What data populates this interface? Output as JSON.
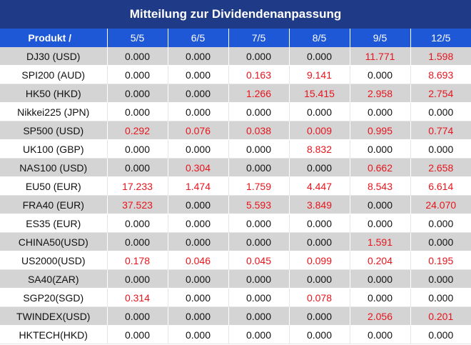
{
  "title": "Mitteilung zur Dividendenanpassung",
  "header": {
    "product_label": "Produkt /",
    "dates": [
      "5/5",
      "6/5",
      "7/5",
      "8/5",
      "9/5",
      "12/5"
    ]
  },
  "colors": {
    "title_bg": "#1f3a86",
    "header_bg": "#1f58d6",
    "shaded_row": "#d4d4d4",
    "positive_value": "#e8141c",
    "zero_value": "#111111"
  },
  "rows": [
    {
      "product": "DJ30 (USD)",
      "values": [
        "0.000",
        "0.000",
        "0.000",
        "0.000",
        "11.771",
        "1.598"
      ]
    },
    {
      "product": "SPI200 (AUD)",
      "values": [
        "0.000",
        "0.000",
        "0.163",
        "9.141",
        "0.000",
        "8.693"
      ]
    },
    {
      "product": "HK50 (HKD)",
      "values": [
        "0.000",
        "0.000",
        "1.266",
        "15.415",
        "2.958",
        "2.754"
      ]
    },
    {
      "product": "Nikkei225 (JPN)",
      "values": [
        "0.000",
        "0.000",
        "0.000",
        "0.000",
        "0.000",
        "0.000"
      ]
    },
    {
      "product": "SP500 (USD)",
      "values": [
        "0.292",
        "0.076",
        "0.038",
        "0.009",
        "0.995",
        "0.774"
      ]
    },
    {
      "product": "UK100 (GBP)",
      "values": [
        "0.000",
        "0.000",
        "0.000",
        "8.832",
        "0.000",
        "0.000"
      ]
    },
    {
      "product": "NAS100 (USD)",
      "values": [
        "0.000",
        "0.304",
        "0.000",
        "0.000",
        "0.662",
        "2.658"
      ]
    },
    {
      "product": "EU50 (EUR)",
      "values": [
        "17.233",
        "1.474",
        "1.759",
        "4.447",
        "8.543",
        "6.614"
      ]
    },
    {
      "product": "FRA40 (EUR)",
      "values": [
        "37.523",
        "0.000",
        "5.593",
        "3.849",
        "0.000",
        "24.070"
      ]
    },
    {
      "product": "ES35 (EUR)",
      "values": [
        "0.000",
        "0.000",
        "0.000",
        "0.000",
        "0.000",
        "0.000"
      ]
    },
    {
      "product": "CHINA50(USD)",
      "values": [
        "0.000",
        "0.000",
        "0.000",
        "0.000",
        "1.591",
        "0.000"
      ]
    },
    {
      "product": "US2000(USD)",
      "values": [
        "0.178",
        "0.046",
        "0.045",
        "0.099",
        "0.204",
        "0.195"
      ]
    },
    {
      "product": "SA40(ZAR)",
      "values": [
        "0.000",
        "0.000",
        "0.000",
        "0.000",
        "0.000",
        "0.000"
      ]
    },
    {
      "product": "SGP20(SGD)",
      "values": [
        "0.314",
        "0.000",
        "0.000",
        "0.078",
        "0.000",
        "0.000"
      ]
    },
    {
      "product": "TWINDEX(USD)",
      "values": [
        "0.000",
        "0.000",
        "0.000",
        "0.000",
        "2.056",
        "0.201"
      ]
    },
    {
      "product": "HKTECH(HKD)",
      "values": [
        "0.000",
        "0.000",
        "0.000",
        "0.000",
        "0.000",
        "0.000"
      ]
    }
  ]
}
